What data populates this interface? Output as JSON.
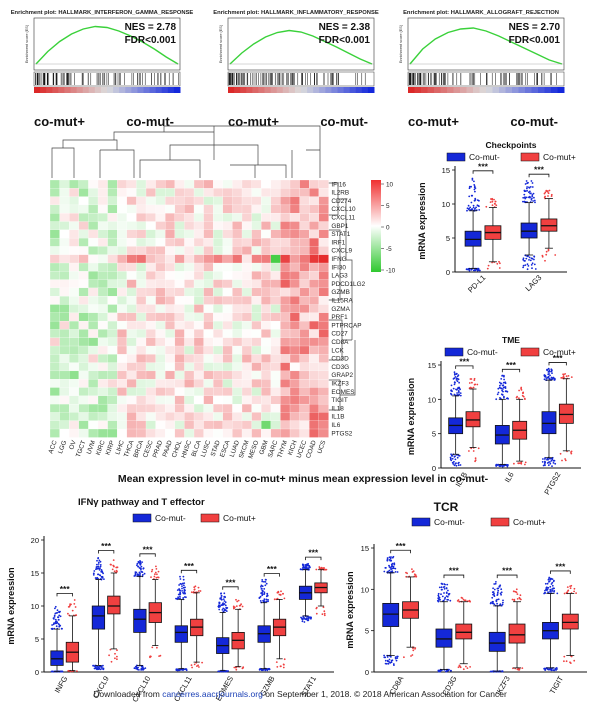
{
  "colors": {
    "comut_minus": "#1428d8",
    "comut_plus": "#f04040",
    "gsea_line": "#3ad13a"
  },
  "gsea_panels": [
    {
      "title": "Enrichment plot: HALLMARK_INTERFERON_GAMMA_RESPONSE",
      "ylabel": "Enrichment score (ES)",
      "nes": "NES = 2.78",
      "fdr": "FDR<0.001",
      "left_label": "co-mut+",
      "right_label": "co-mut-",
      "curve": [
        0,
        0.25,
        0.45,
        0.6,
        0.7,
        0.75,
        0.73,
        0.66,
        0.56,
        0.44,
        0.3,
        0.14,
        0
      ]
    },
    {
      "title": "Enrichment plot: HALLMARK_INFLAMMATORY_RESPONSE",
      "ylabel": "Enrichment score (ES)",
      "nes": "NES = 2.38",
      "fdr": "FDR<0.001",
      "left_label": "co-mut+",
      "right_label": "co-mut-",
      "curve": [
        0,
        0.22,
        0.4,
        0.54,
        0.63,
        0.67,
        0.64,
        0.56,
        0.45,
        0.34,
        0.22,
        0.1,
        0
      ]
    },
    {
      "title": "Enrichment plot: HALLMARK_ALLOGRAFT_REJECTION",
      "ylabel": "Enrichment score (ES)",
      "nes": "NES = 2.70",
      "fdr": "FDR<0.001",
      "left_label": "co-mut+",
      "right_label": "co-mut-",
      "curve": [
        0,
        0.3,
        0.5,
        0.63,
        0.7,
        0.72,
        0.66,
        0.56,
        0.44,
        0.32,
        0.2,
        0.08,
        0
      ]
    }
  ],
  "heatmap": {
    "rows": [
      "IFI16",
      "IL2RB",
      "CD274",
      "CXCL10",
      "CXCL11",
      "GBP1",
      "STAT1",
      "IRF1",
      "CXCL9",
      "IFNG",
      "IFI30",
      "LAG3",
      "PDCD1LG2",
      "GZMB",
      "IL15RA",
      "GZMA",
      "PRF1",
      "PTPRCAP",
      "CD27",
      "CD8A",
      "LCK",
      "CD3D",
      "CD3G",
      "GRAP2",
      "IKZF3",
      "EOMES",
      "TIGIT",
      "IL18",
      "IL1B",
      "IL6",
      "PTGS2"
    ],
    "cols": [
      "ACC",
      "LGG",
      "OV",
      "TGCT",
      "UVM",
      "KIRC",
      "KIRP",
      "LIHC",
      "THCA",
      "BRCA",
      "CESC",
      "PRAD",
      "PAAD",
      "CHOL",
      "HNSC",
      "BLCA",
      "LUSC",
      "STAD",
      "ESCA",
      "LUAD",
      "SKCM",
      "MESO",
      "GBM",
      "SARC",
      "THYM",
      "KICH",
      "UCEC",
      "COAD",
      "UCS"
    ],
    "legend_ticks": [
      "10",
      "5",
      "0",
      "-5",
      "-10"
    ],
    "caption": "Mean expression level in co-mut+ minus mean expression level in co-mut-"
  },
  "chart_data": [
    {
      "type": "box",
      "title": "Checkpoints",
      "ylabel": "mRNA expression",
      "ylim": [
        0,
        15
      ],
      "yticks": [
        0,
        5,
        10,
        15
      ],
      "legend": [
        "Co-mut-",
        "Co-mut+"
      ],
      "categories": [
        "PD-L1",
        "LAG3"
      ],
      "significance": [
        "***",
        "***"
      ],
      "series": [
        {
          "name": "Co-mut-",
          "q1": [
            3.8,
            5.0
          ],
          "median": [
            4.8,
            6.0
          ],
          "q3": [
            6.0,
            7.2
          ],
          "whisker_low": [
            0.5,
            2.5
          ],
          "whisker_high": [
            9.0,
            10.2
          ],
          "outlier_high": [
            14.0,
            13.5
          ],
          "outlier_low": [
            0.2,
            0.4
          ]
        },
        {
          "name": "Co-mut+",
          "q1": [
            4.8,
            6.0
          ],
          "median": [
            5.8,
            6.8
          ],
          "q3": [
            6.8,
            7.8
          ],
          "whisker_low": [
            1.5,
            3.5
          ],
          "whisker_high": [
            9.5,
            10.8
          ],
          "outlier_high": [
            11.0,
            12.0
          ],
          "outlier_low": [
            0.5,
            1.5
          ]
        }
      ]
    },
    {
      "type": "box",
      "title": "TME",
      "ylabel": "mRNA expression",
      "ylim": [
        0,
        15
      ],
      "yticks": [
        0,
        5,
        10,
        15
      ],
      "legend": [
        "Co-mut-",
        "Co-mut+"
      ],
      "categories": [
        "IL1B",
        "IL6",
        "PTGS2"
      ],
      "significance": [
        "***",
        "***",
        "***"
      ],
      "series": [
        {
          "name": "Co-mut-",
          "q1": [
            5.0,
            3.5,
            5.0
          ],
          "median": [
            6.2,
            4.8,
            6.5
          ],
          "q3": [
            7.3,
            6.2,
            8.2
          ],
          "whisker_low": [
            2.0,
            0.5,
            1.5
          ],
          "whisker_high": [
            10.5,
            10.0,
            12.8
          ],
          "outlier_high": [
            14.0,
            13.5,
            14.5
          ],
          "outlier_low": [
            0.2,
            0.2,
            0.2
          ]
        },
        {
          "name": "Co-mut+",
          "q1": [
            6.0,
            4.2,
            6.5
          ],
          "median": [
            7.0,
            5.5,
            7.8
          ],
          "q3": [
            8.2,
            6.8,
            9.3
          ],
          "whisker_low": [
            3.0,
            1.0,
            2.5
          ],
          "whisker_high": [
            11.5,
            10.0,
            13.0
          ],
          "outlier_high": [
            13.5,
            12.0,
            14.2
          ],
          "outlier_low": [
            0.5,
            0.4,
            0.8
          ]
        }
      ]
    },
    {
      "type": "box",
      "title": "IFNγ pathway and T effector",
      "ylabel": "mRNA expression",
      "ylim": [
        0,
        20
      ],
      "yticks": [
        0,
        5,
        10,
        15,
        20
      ],
      "legend": [
        "Co-mut-",
        "Co-mut+"
      ],
      "categories": [
        "INFG",
        "CXCL9",
        "CXCL10",
        "CXCL11",
        "EOMES",
        "GZMB",
        "STAT1"
      ],
      "significance": [
        "***",
        "***",
        "***",
        "***",
        "***",
        "***",
        "***"
      ],
      "series": [
        {
          "name": "Co-mut-",
          "q1": [
            1.0,
            6.5,
            6.0,
            4.5,
            2.8,
            4.5,
            11.0
          ],
          "median": [
            2.0,
            8.5,
            8.0,
            6.0,
            4.0,
            5.8,
            12.0
          ],
          "q3": [
            3.2,
            10.0,
            9.5,
            7.0,
            5.2,
            7.0,
            13.0
          ],
          "whisker_low": [
            0.1,
            1.0,
            1.0,
            0.5,
            0.2,
            0.5,
            8.5
          ],
          "whisker_high": [
            6.5,
            14.0,
            14.5,
            11.0,
            9.0,
            10.5,
            15.5
          ],
          "outlier_high": [
            10.0,
            17.5,
            17.0,
            14.5,
            12.0,
            14.0,
            16.5
          ],
          "outlier_low": [
            0.0,
            0.3,
            0.3,
            0.2,
            0.0,
            0.2,
            7.5
          ]
        },
        {
          "name": "Co-mut+",
          "q1": [
            1.5,
            8.8,
            7.5,
            5.5,
            3.5,
            5.5,
            12.0
          ],
          "median": [
            3.0,
            10.0,
            9.0,
            6.8,
            4.8,
            6.8,
            12.8
          ],
          "q3": [
            4.5,
            11.5,
            10.5,
            8.0,
            6.0,
            8.0,
            13.5
          ],
          "whisker_low": [
            0.2,
            3.5,
            4.0,
            1.5,
            0.8,
            2.0,
            10.0
          ],
          "whisker_high": [
            8.5,
            15.0,
            14.0,
            12.0,
            9.5,
            11.0,
            15.5
          ],
          "outlier_high": [
            11.0,
            17.0,
            16.0,
            13.0,
            11.0,
            12.5,
            16.0
          ],
          "outlier_low": [
            0.0,
            1.5,
            1.8,
            0.4,
            0.2,
            0.5,
            8.5
          ]
        }
      ]
    },
    {
      "type": "box",
      "title": "TCR",
      "ylabel": "mRNA expression",
      "ylim": [
        0,
        15
      ],
      "yticks": [
        0,
        5,
        10,
        15
      ],
      "legend": [
        "Co-mut-",
        "Co-mut+"
      ],
      "categories": [
        "CD8A",
        "CD3G",
        "IKZF3",
        "TIGIT"
      ],
      "significance": [
        "***",
        "***",
        "***",
        "***"
      ],
      "series": [
        {
          "name": "Co-mut-",
          "q1": [
            5.5,
            3.0,
            2.5,
            4.0
          ],
          "median": [
            7.0,
            4.0,
            3.5,
            5.0
          ],
          "q3": [
            8.3,
            5.2,
            4.8,
            6.0
          ],
          "whisker_low": [
            2.0,
            0.3,
            0.1,
            0.5
          ],
          "whisker_high": [
            12.0,
            8.5,
            8.0,
            9.5
          ],
          "outlier_high": [
            14.0,
            11.0,
            11.0,
            11.5
          ],
          "outlier_low": [
            0.5,
            0.0,
            0.0,
            0.2
          ]
        },
        {
          "name": "Co-mut+",
          "q1": [
            6.5,
            4.0,
            3.5,
            5.2
          ],
          "median": [
            7.5,
            4.8,
            4.5,
            6.0
          ],
          "q3": [
            8.5,
            5.8,
            5.8,
            7.0
          ],
          "whisker_low": [
            3.0,
            1.0,
            0.5,
            2.0
          ],
          "whisker_high": [
            11.5,
            8.5,
            8.5,
            9.5
          ],
          "outlier_high": [
            12.5,
            9.0,
            10.0,
            10.5
          ],
          "outlier_low": [
            1.0,
            0.3,
            0.2,
            1.0
          ]
        }
      ]
    }
  ],
  "footer": {
    "prefix": "Downloaded from ",
    "link": "cancerres.aacrjournals.org",
    "suffix": " on September 1, 2018. © 2018 American Association for Cancer"
  }
}
